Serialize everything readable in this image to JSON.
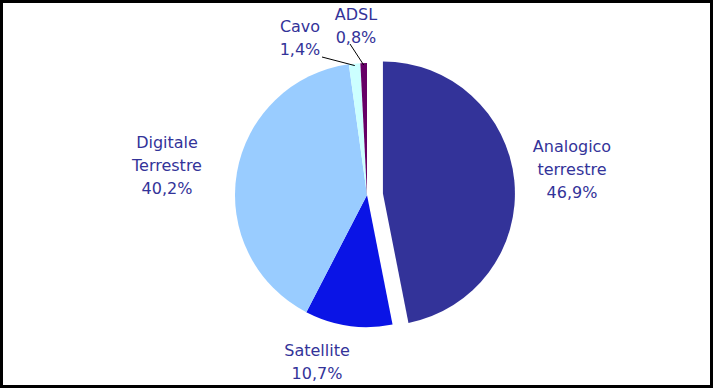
{
  "chart_data": {
    "type": "pie",
    "categories": [
      "Analogico terrestre",
      "Satellite",
      "Digitale Terrestre",
      "Cavo",
      "ADSL"
    ],
    "values": [
      46.9,
      10.7,
      40.2,
      1.4,
      0.8
    ],
    "value_labels": [
      "46,9%",
      "10,7%",
      "40,2%",
      "1,4%",
      "0,8%"
    ],
    "colors": [
      "#333399",
      "#0a14e6",
      "#99ccff",
      "#ccffff",
      "#660066"
    ],
    "data_labels": true
  }
}
